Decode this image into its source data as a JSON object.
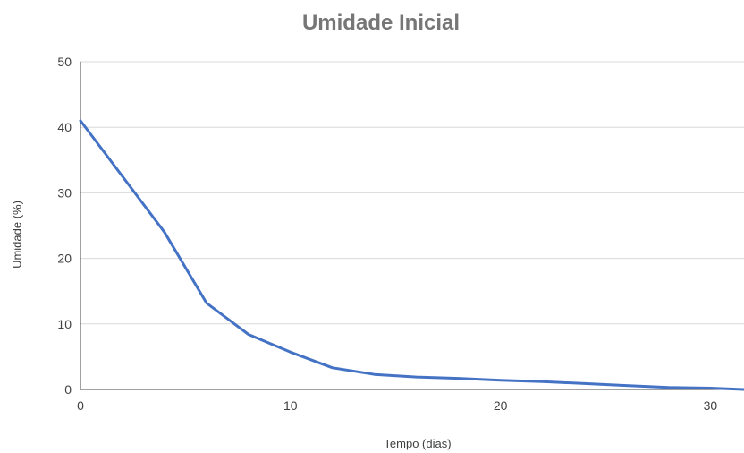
{
  "chart_data": {
    "type": "line",
    "title": "Umidade Inicial",
    "xlabel": "Tempo (dias)",
    "ylabel": "Umidade (%)",
    "xlim": [
      0,
      31.6
    ],
    "ylim": [
      0,
      50
    ],
    "xticks": [
      0,
      10,
      20,
      30
    ],
    "yticks": [
      0,
      10,
      20,
      30,
      40,
      50
    ],
    "grid": true,
    "legend": "none",
    "series": [
      {
        "color": "#4472C4",
        "x": [
          0,
          2,
          4,
          6,
          8,
          10,
          12,
          14,
          16,
          18,
          20,
          22,
          24,
          26,
          28,
          30,
          31.6
        ],
        "y": [
          41,
          32.5,
          24,
          13.2,
          8.4,
          5.7,
          3.3,
          2.3,
          1.9,
          1.7,
          1.4,
          1.2,
          0.9,
          0.6,
          0.3,
          0.2,
          0
        ]
      }
    ]
  }
}
